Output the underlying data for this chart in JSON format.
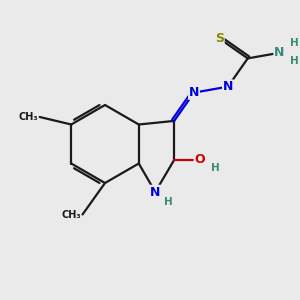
{
  "bg_color": "#eaeaea",
  "bond_color": "#1a1a1a",
  "N_color": "#0000dd",
  "O_color": "#cc0000",
  "S_color": "#888800",
  "NH_color": "#3a8a7a",
  "bond_lw": 1.6,
  "figsize": [
    3.0,
    3.0
  ],
  "dpi": 100,
  "xlim": [
    0.0,
    10.0
  ],
  "ylim": [
    0.5,
    9.5
  ]
}
